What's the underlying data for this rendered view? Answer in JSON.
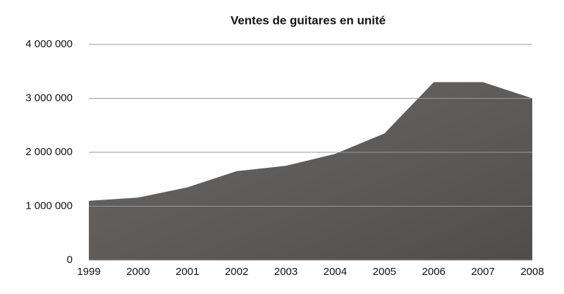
{
  "chart_data": {
    "type": "area",
    "title": "Ventes de guitares en unité",
    "categories": [
      "1999",
      "2000",
      "2001",
      "2002",
      "2003",
      "2004",
      "2005",
      "2006",
      "2007",
      "2008"
    ],
    "values": [
      1100000,
      1160000,
      1350000,
      1650000,
      1750000,
      1970000,
      2350000,
      3300000,
      3300000,
      3000000
    ],
    "color": "#5a5856",
    "ylim": [
      0,
      4000000
    ],
    "yticks": [
      0,
      {
        "value": 1000000,
        "label": "1 000 000"
      },
      {
        "value": 2000000,
        "label": "2 000 000"
      },
      {
        "value": 3000000,
        "label": "3 000 000"
      },
      {
        "value": 4000000,
        "label": "4 000 000"
      }
    ],
    "grid": true
  }
}
